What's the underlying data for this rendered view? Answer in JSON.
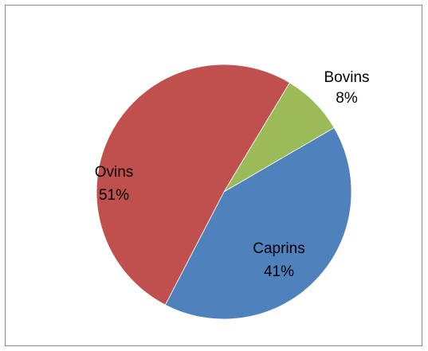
{
  "chart_data": {
    "type": "pie",
    "title": "",
    "start_angle_deg": 31,
    "direction": "clockwise",
    "legend": "none",
    "slices": [
      {
        "label": "Bovins",
        "value": 8,
        "pct_label": "8%",
        "color": "#9BBB59"
      },
      {
        "label": "Caprins",
        "value": 41,
        "pct_label": "41%",
        "color": "#4F81BD"
      },
      {
        "label": "Ovins",
        "value": 51,
        "pct_label": "51%",
        "color": "#C0504D"
      }
    ]
  }
}
